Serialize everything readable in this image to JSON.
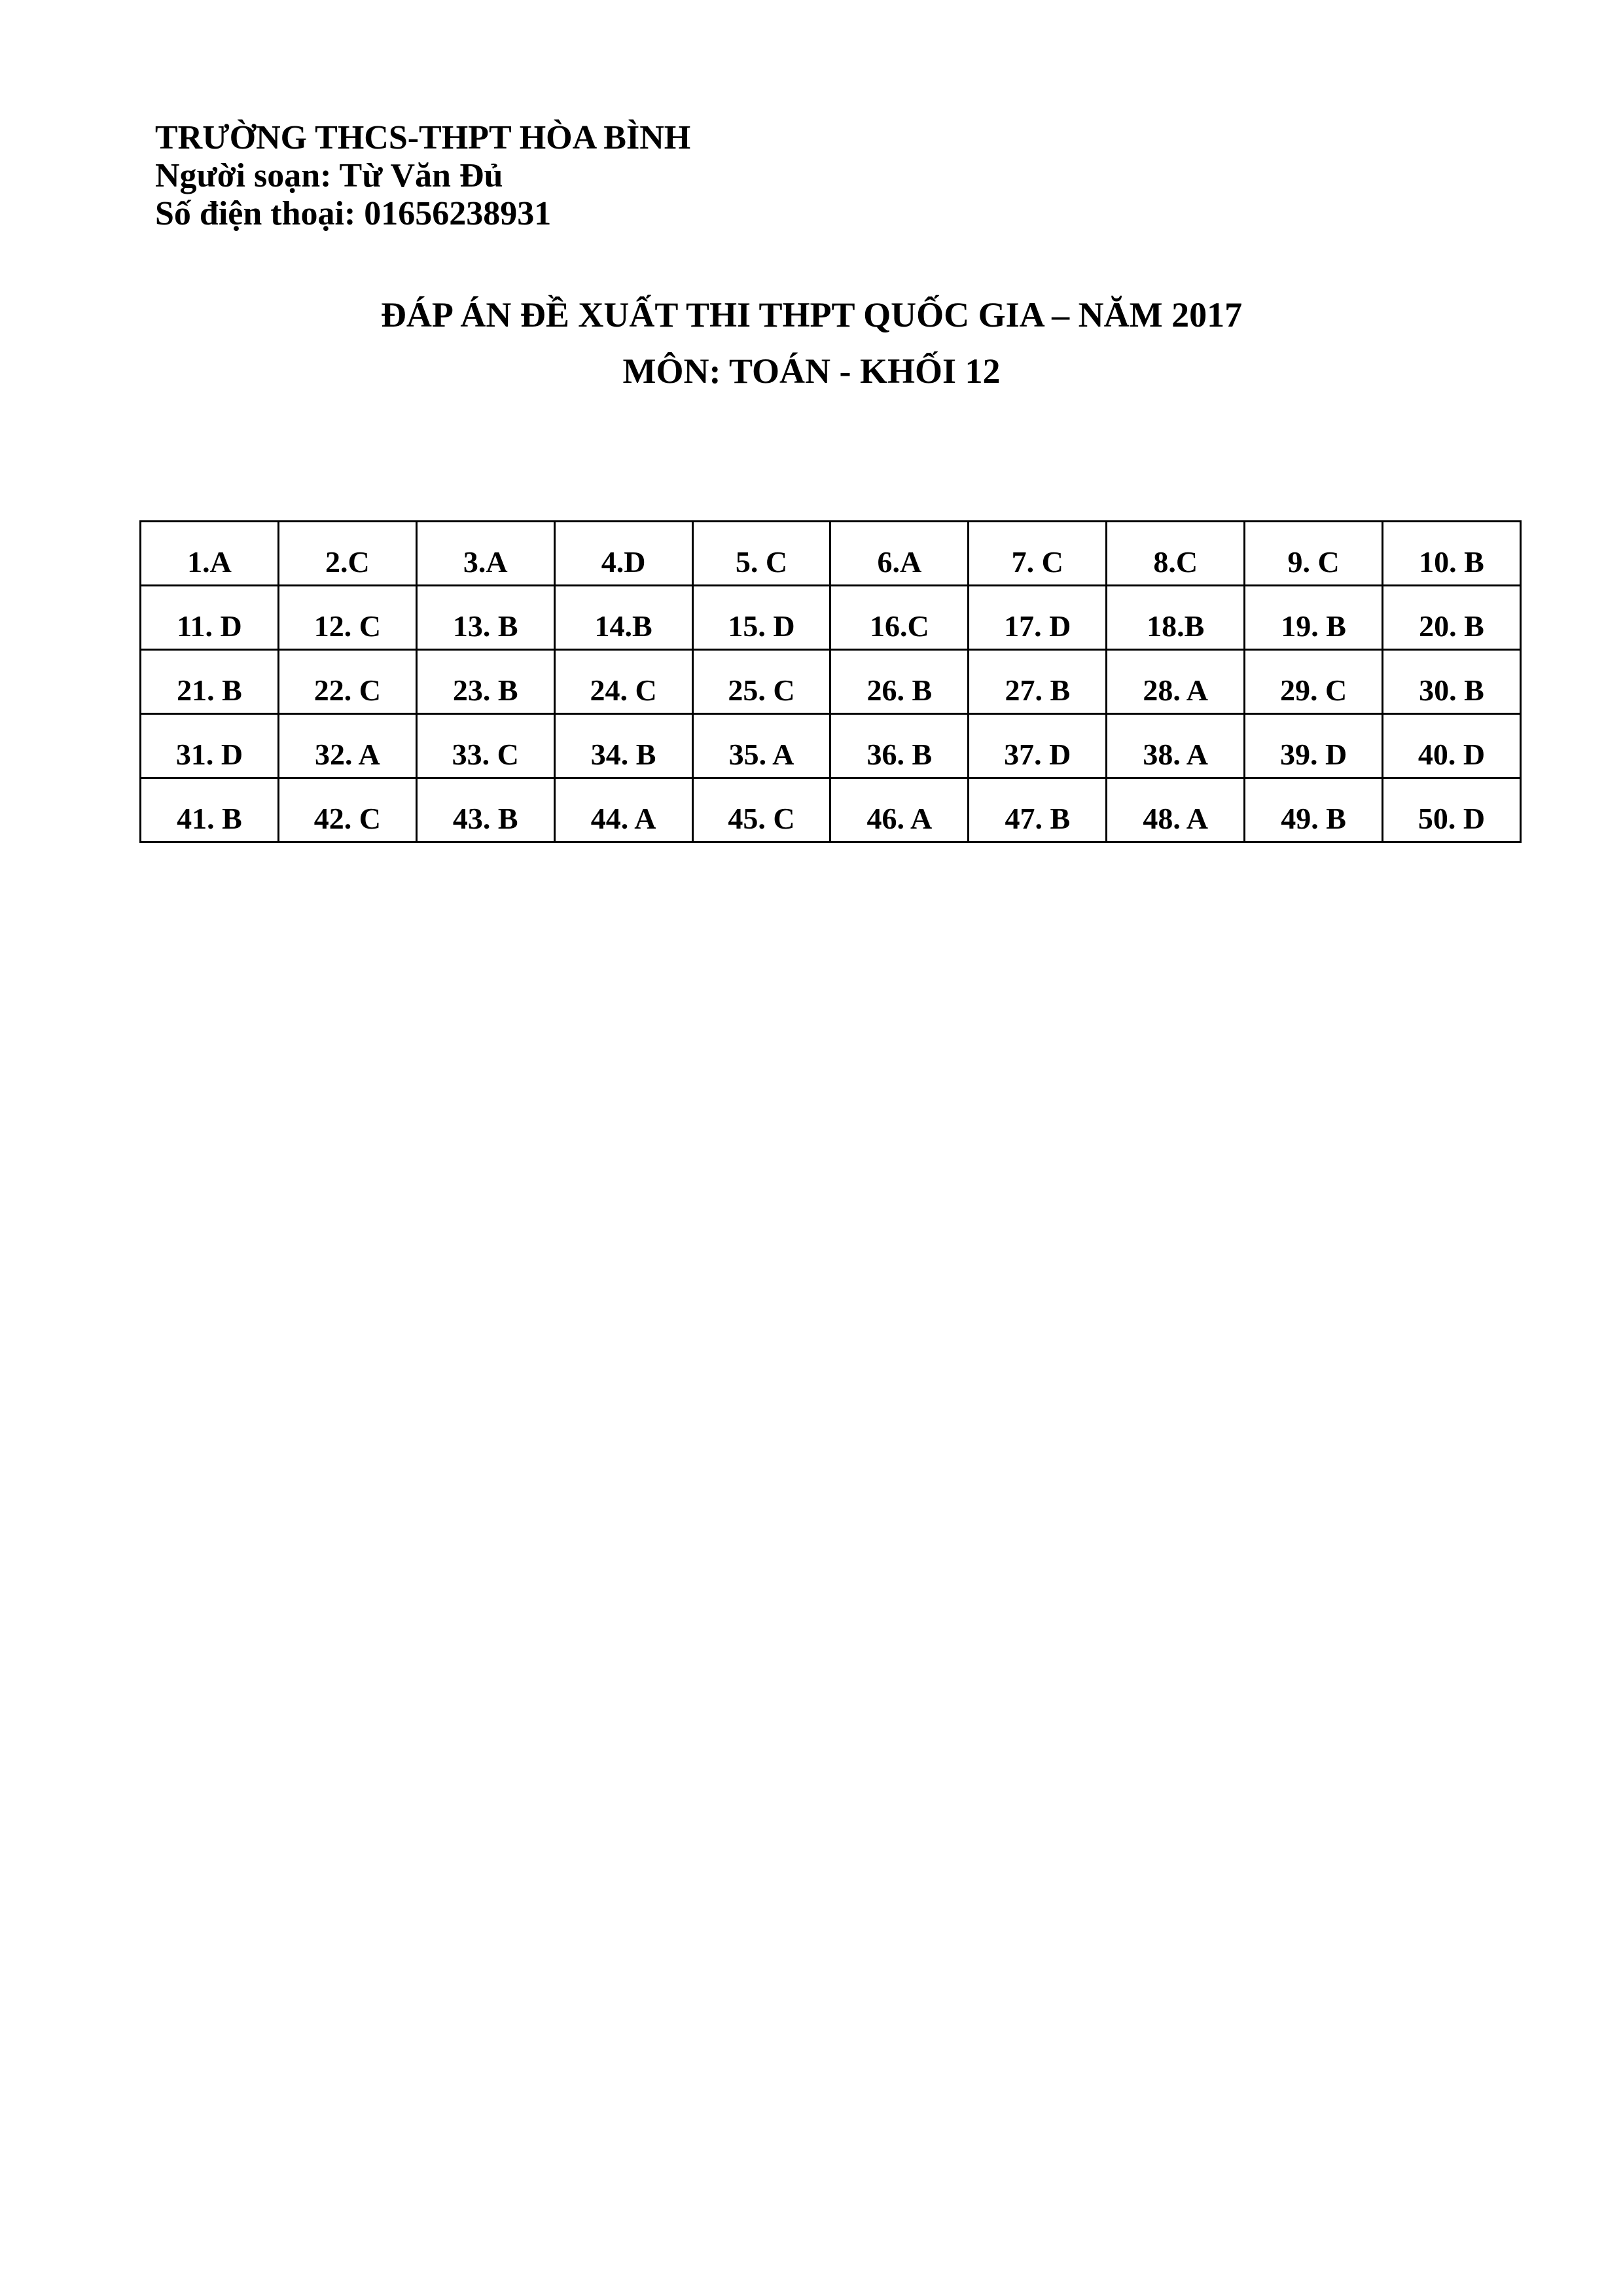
{
  "header": {
    "school": "TRƯỜNG THCS-THPT HÒA BÌNH",
    "author": "Người soạn: Từ Văn Đủ",
    "phone": "Số điện thoại: 01656238931"
  },
  "title": {
    "line1": "ĐÁP ÁN ĐỀ XUẤT THI THPT QUỐC GIA – NĂM 2017",
    "line2": "MÔN: TOÁN - KHỐI 12"
  },
  "answer_table": {
    "rows": [
      [
        "1.A",
        "2.C",
        "3.A",
        "4.D",
        "5. C",
        "6.A",
        "7. C",
        "8.C",
        "9. C",
        "10. B"
      ],
      [
        "11. D",
        "12. C",
        "13. B",
        "14.B",
        "15. D",
        "16.C",
        "17. D",
        "18.B",
        "19. B",
        "20. B"
      ],
      [
        "21. B",
        "22. C",
        "23. B",
        "24. C",
        "25. C",
        "26. B",
        "27. B",
        "28. A",
        "29. C",
        "30. B"
      ],
      [
        "31. D",
        "32. A",
        "33. C",
        "34. B",
        "35. A",
        "36. B",
        "37. D",
        "38. A",
        "39. D",
        "40. D"
      ],
      [
        "41. B",
        "42. C",
        "43. B",
        "44. A",
        "45. C",
        "46. A",
        "47. B",
        "48. A",
        "49. B",
        "50. D"
      ]
    ]
  }
}
